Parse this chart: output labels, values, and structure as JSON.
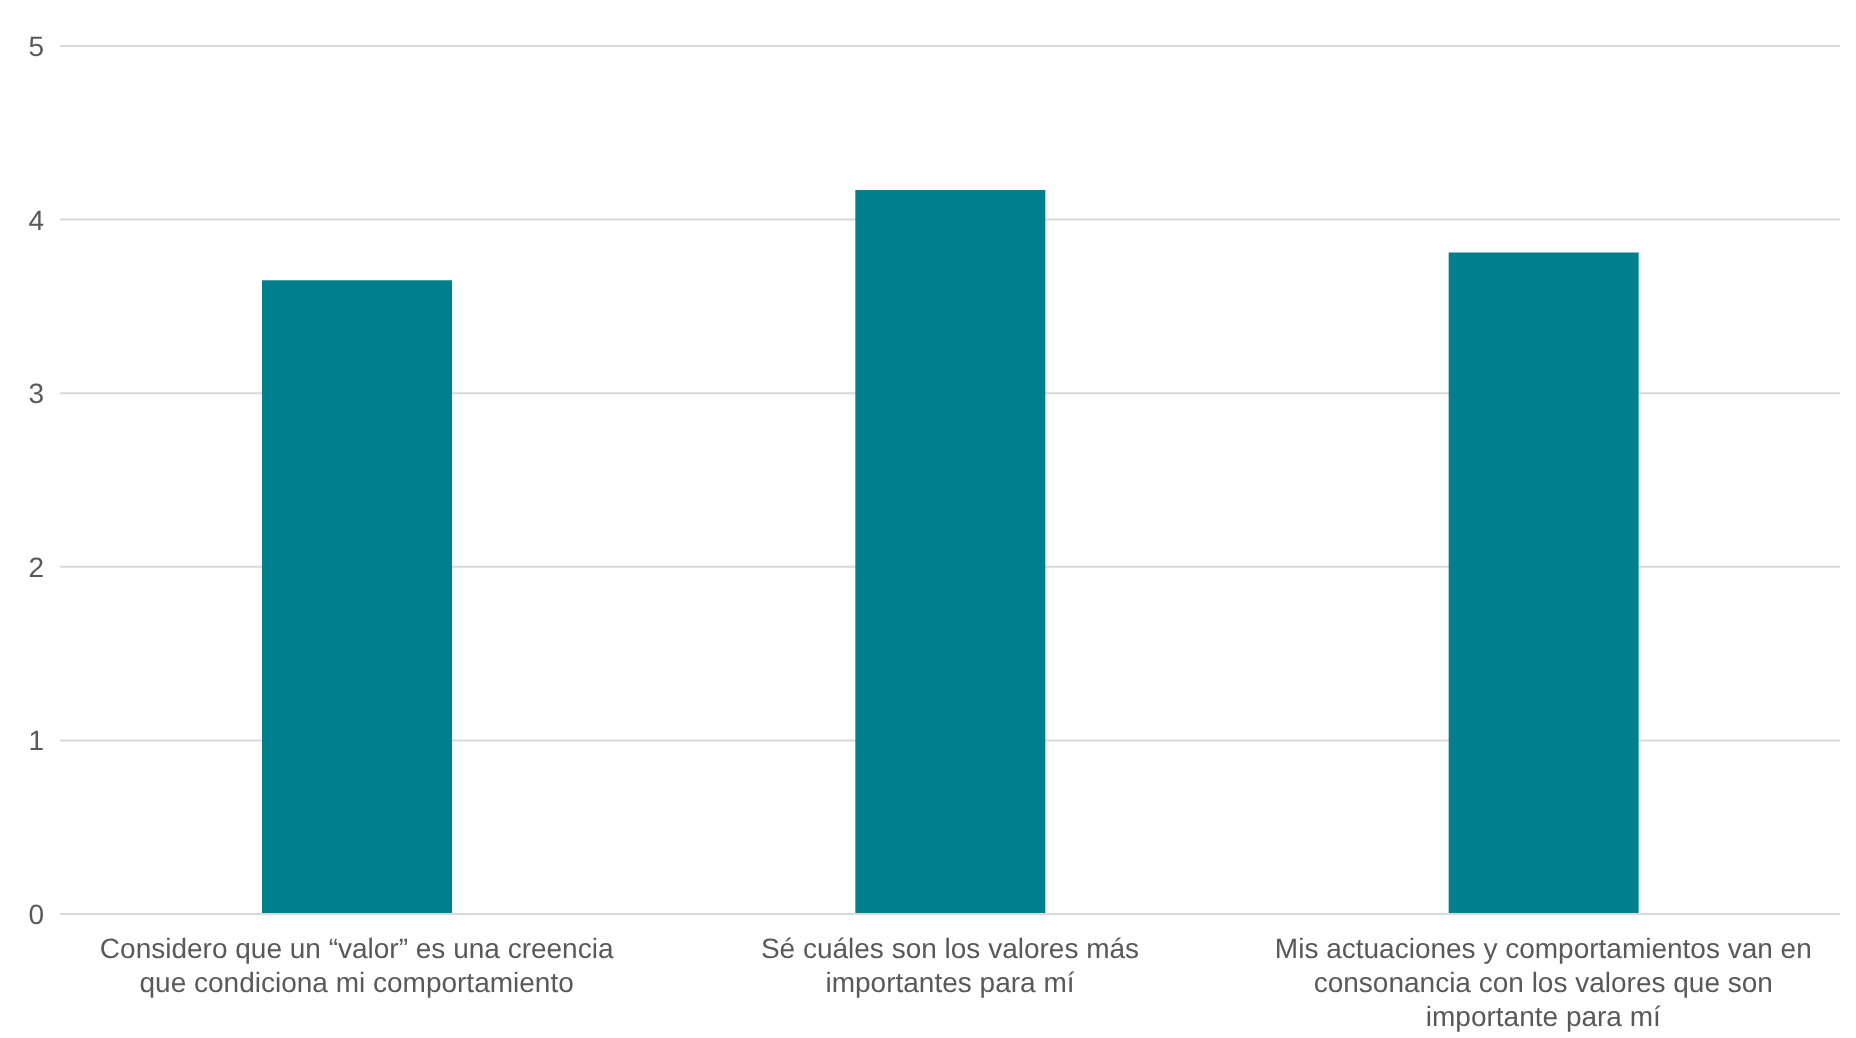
{
  "chart_data": {
    "type": "bar",
    "categories": [
      "Considero que un “valor” es una creencia que condiciona mi comportamiento",
      "Sé cuáles son los valores más importantes para mí",
      "Mis actuaciones y comportamientos van en consonancia con los valores que son importante para mí"
    ],
    "values": [
      3.65,
      4.17,
      3.81
    ],
    "color": "#00808f",
    "ylim": [
      0,
      5
    ],
    "yticks": [
      0,
      1,
      2,
      3,
      4,
      5
    ],
    "grid": "y"
  }
}
